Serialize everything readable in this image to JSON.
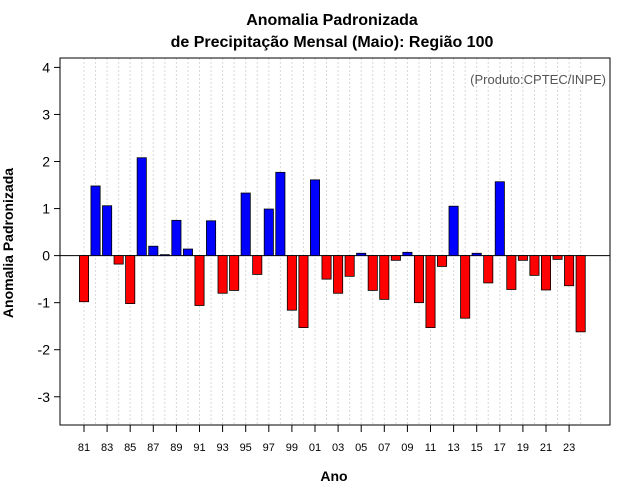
{
  "chart_data": {
    "type": "bar",
    "title": "Anomalia Padronizada",
    "subtitle": "de Precipitação Mensal (Maio): Região 100",
    "xlabel": "Ano",
    "ylabel": "Anomalia Padronizada",
    "source": "(Produto:CPTEC/INPE)",
    "ylim": [
      -3.6,
      4.2
    ],
    "yticks": [
      -3,
      -2,
      -1,
      0,
      1,
      2,
      3,
      4
    ],
    "categories": [
      "81",
      "82",
      "83",
      "84",
      "85",
      "86",
      "87",
      "88",
      "89",
      "90",
      "91",
      "92",
      "93",
      "94",
      "95",
      "96",
      "97",
      "98",
      "99",
      "00",
      "01",
      "02",
      "03",
      "04",
      "05",
      "06",
      "07",
      "08",
      "09",
      "10",
      "11",
      "12",
      "13",
      "14",
      "15",
      "16",
      "17",
      "18",
      "19",
      "20",
      "21",
      "22",
      "23",
      "24"
    ],
    "xtick_labels": [
      "81",
      "83",
      "85",
      "87",
      "89",
      "91",
      "93",
      "95",
      "97",
      "99",
      "01",
      "03",
      "05",
      "07",
      "09",
      "11",
      "13",
      "15",
      "17",
      "19",
      "21",
      "23"
    ],
    "values": [
      -0.98,
      1.48,
      1.06,
      -0.18,
      -1.02,
      2.08,
      0.2,
      0.02,
      0.75,
      0.14,
      -1.06,
      0.74,
      -0.8,
      -0.74,
      1.33,
      -0.4,
      0.99,
      1.77,
      -1.16,
      -1.53,
      1.61,
      -0.5,
      -0.8,
      -0.44,
      0.05,
      -0.74,
      -0.93,
      -0.1,
      0.07,
      -1.0,
      -1.53,
      -0.23,
      1.05,
      -1.33,
      0.05,
      -0.58,
      1.57,
      -0.72,
      -0.1,
      -0.42,
      -0.73,
      -0.08,
      -0.64,
      -1.62
    ],
    "positive_color": "#0000ff",
    "negative_color": "#ff0000",
    "grid": true
  }
}
